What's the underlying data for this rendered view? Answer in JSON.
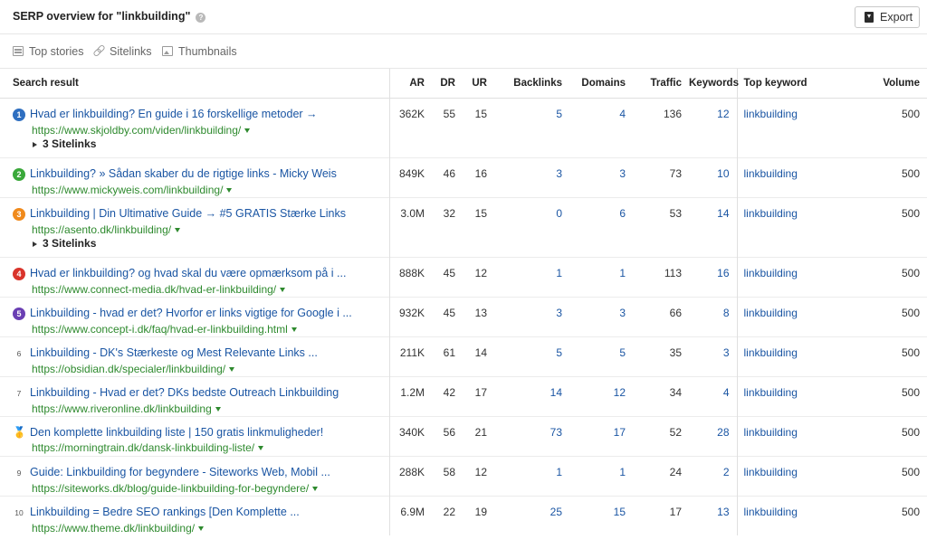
{
  "header": {
    "title": "SERP overview for \"linkbuilding\"",
    "export_label": "Export"
  },
  "filters": [
    {
      "label": "Top stories",
      "icon": "top-stories-icon"
    },
    {
      "label": "Sitelinks",
      "icon": "link-icon"
    },
    {
      "label": "Thumbnails",
      "icon": "image-icon"
    }
  ],
  "columns": {
    "search_result": "Search result",
    "ar": "AR",
    "dr": "DR",
    "ur": "UR",
    "backlinks": "Backlinks",
    "domains": "Domains",
    "traffic": "Traffic",
    "keywords": "Keywords",
    "top_keyword": "Top keyword",
    "volume": "Volume"
  },
  "colors": {
    "link": "#1a55a3",
    "url": "#2e8a2e",
    "pos1": "#2f6fc0",
    "pos2": "#3aa83a",
    "pos3": "#f08a1c",
    "pos4": "#d9342b",
    "pos5": "#6a3fb3"
  },
  "rows": [
    {
      "pos": "1",
      "title": "Hvad er linkbuilding? En guide i 16 forskellige metoder →",
      "url": "https://www.skjoldby.com/viden/linkbuilding/",
      "ar": "362K",
      "dr": "55",
      "ur": "15",
      "backlinks": "5",
      "domains": "4",
      "traffic": "136",
      "keywords": "12",
      "top_keyword": "linkbuilding",
      "volume": "500",
      "sitelinks": "3 Sitelinks"
    },
    {
      "pos": "2",
      "title": "Linkbuilding? » Sådan skaber du de rigtige links - Micky Weis",
      "url": "https://www.mickyweis.com/linkbuilding/",
      "ar": "849K",
      "dr": "46",
      "ur": "16",
      "backlinks": "3",
      "domains": "3",
      "traffic": "73",
      "keywords": "10",
      "top_keyword": "linkbuilding",
      "volume": "500"
    },
    {
      "pos": "3",
      "title": "Linkbuilding | Din Ultimative Guide → #5 GRATIS Stærke Links",
      "url": "https://asento.dk/linkbuilding/",
      "ar": "3.0M",
      "dr": "32",
      "ur": "15",
      "backlinks": "0",
      "domains": "6",
      "traffic": "53",
      "keywords": "14",
      "top_keyword": "linkbuilding",
      "volume": "500",
      "sitelinks": "3 Sitelinks"
    },
    {
      "pos": "4",
      "title": "Hvad er linkbuilding? og hvad skal du være opmærksom på i ...",
      "url": "https://www.connect-media.dk/hvad-er-linkbuilding/",
      "ar": "888K",
      "dr": "45",
      "ur": "12",
      "backlinks": "1",
      "domains": "1",
      "traffic": "113",
      "keywords": "16",
      "top_keyword": "linkbuilding",
      "volume": "500"
    },
    {
      "pos": "5",
      "title": "Linkbuilding - hvad er det? Hvorfor er links vigtige for Google i ...",
      "url": "https://www.concept-i.dk/faq/hvad-er-linkbuilding.html",
      "ar": "932K",
      "dr": "45",
      "ur": "13",
      "backlinks": "3",
      "domains": "3",
      "traffic": "66",
      "keywords": "8",
      "top_keyword": "linkbuilding",
      "volume": "500"
    },
    {
      "pos": "6",
      "title": "Linkbuilding - DK's Stærkeste og Mest Relevante Links ...",
      "url": "https://obsidian.dk/specialer/linkbuilding/",
      "ar": "211K",
      "dr": "61",
      "ur": "14",
      "backlinks": "5",
      "domains": "5",
      "traffic": "35",
      "keywords": "3",
      "top_keyword": "linkbuilding",
      "volume": "500"
    },
    {
      "pos": "7",
      "title": "Linkbuilding - Hvad er det? DKs bedste Outreach Linkbuilding",
      "url": "https://www.riveronline.dk/linkbuilding",
      "ar": "1.2M",
      "dr": "42",
      "ur": "17",
      "backlinks": "14",
      "domains": "12",
      "traffic": "34",
      "keywords": "4",
      "top_keyword": "linkbuilding",
      "volume": "500"
    },
    {
      "pos": "8",
      "title": "Den komplette linkbuilding liste | 150 gratis linkmuligheder!",
      "url": "https://morningtrain.dk/dansk-linkbuilding-liste/",
      "ar": "340K",
      "dr": "56",
      "ur": "21",
      "backlinks": "73",
      "domains": "17",
      "traffic": "52",
      "keywords": "28",
      "top_keyword": "linkbuilding",
      "volume": "500",
      "medal": "🥇"
    },
    {
      "pos": "9",
      "title": "Guide: Linkbuilding for begyndere - Siteworks Web, Mobil ...",
      "url": "https://siteworks.dk/blog/guide-linkbuilding-for-begyndere/",
      "ar": "288K",
      "dr": "58",
      "ur": "12",
      "backlinks": "1",
      "domains": "1",
      "traffic": "24",
      "keywords": "2",
      "top_keyword": "linkbuilding",
      "volume": "500"
    },
    {
      "pos": "10",
      "title": "Linkbuilding = Bedre SEO rankings [Den Komplette ...",
      "url": "https://www.theme.dk/linkbuilding/",
      "ar": "6.9M",
      "dr": "22",
      "ur": "19",
      "backlinks": "25",
      "domains": "15",
      "traffic": "17",
      "keywords": "13",
      "top_keyword": "linkbuilding",
      "volume": "500"
    }
  ]
}
